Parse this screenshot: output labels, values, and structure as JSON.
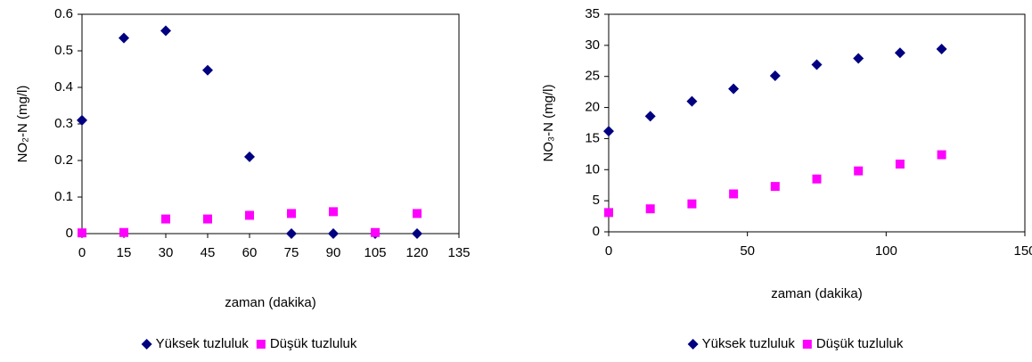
{
  "chart_data": [
    {
      "type": "scatter",
      "xlabel": "zaman (dakika)",
      "ylabel": "NO₂-N (mg/l)",
      "x": [
        0,
        15,
        30,
        45,
        60,
        75,
        90,
        105,
        120
      ],
      "series": [
        {
          "name": "Yüksek tuzluluk",
          "color": "#000080",
          "marker": "diamond",
          "values": [
            0.31,
            0.535,
            0.555,
            0.447,
            0.21,
            0,
            0,
            0,
            0
          ]
        },
        {
          "name": "Düşük tuzluluk",
          "color": "#ff00ff",
          "marker": "square",
          "values": [
            0.002,
            0.003,
            0.04,
            0.04,
            0.05,
            0.055,
            0.06,
            0.003,
            0.055
          ]
        }
      ],
      "xlim": [
        0,
        135
      ],
      "xticks": [
        0,
        15,
        30,
        45,
        60,
        75,
        90,
        105,
        120,
        135
      ],
      "ylim": [
        0,
        0.6
      ],
      "yticks": [
        0,
        0.1,
        0.2,
        0.3,
        0.4,
        0.5,
        0.6
      ],
      "grid": false,
      "legend": "bottom"
    },
    {
      "type": "scatter",
      "xlabel": "zaman (dakika)",
      "ylabel": "NO₃-N (mg/l)",
      "x": [
        0,
        15,
        30,
        45,
        60,
        75,
        90,
        105,
        120
      ],
      "series": [
        {
          "name": "Yüksek tuzluluk",
          "color": "#000080",
          "marker": "diamond",
          "values": [
            16.2,
            18.6,
            21,
            23,
            25.1,
            26.9,
            27.9,
            28.8,
            29.4
          ]
        },
        {
          "name": "Düşük tuzluluk",
          "color": "#ff00ff",
          "marker": "square",
          "values": [
            3.1,
            3.7,
            4.5,
            6.1,
            7.3,
            8.5,
            9.8,
            10.9,
            12.4
          ]
        }
      ],
      "xlim": [
        0,
        150
      ],
      "xticks": [
        0,
        50,
        100,
        150
      ],
      "ylim": [
        0,
        35
      ],
      "yticks": [
        0,
        5,
        10,
        15,
        20,
        25,
        30,
        35
      ],
      "grid": false,
      "legend": "bottom"
    }
  ]
}
